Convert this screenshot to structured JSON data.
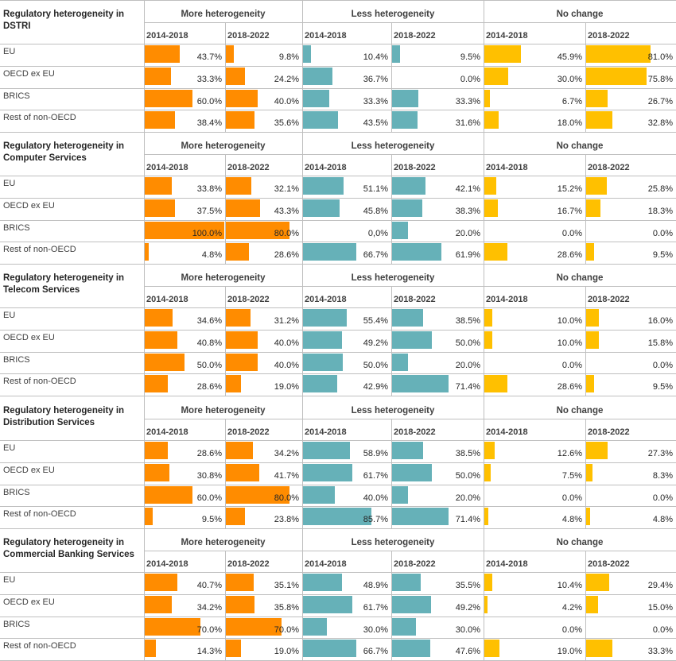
{
  "colors": {
    "more": "#ff8c00",
    "less": "#66b1b8",
    "nochange": "#ffc000"
  },
  "groups": [
    "More heterogeneity",
    "Less heterogeneity",
    "No change"
  ],
  "periods": [
    "2014-2018",
    "2018-2022"
  ],
  "regions": [
    "EU",
    "OECD ex EU",
    "BRICS",
    "Rest of non-OECD"
  ],
  "chart_data": [
    {
      "type": "table",
      "title": "Regulatory heterogeneity in DSTRI",
      "rows": [
        {
          "region": "EU",
          "labels": [
            "43.7%",
            "9.8%",
            "10.4%",
            "9.5%",
            "45.9%",
            "81.0%"
          ],
          "values": [
            43.7,
            9.8,
            10.4,
            9.5,
            45.9,
            81.0
          ]
        },
        {
          "region": "OECD ex EU",
          "labels": [
            "33.3%",
            "24.2%",
            "36.7%",
            "0.0%",
            "30.0%",
            "75.8%"
          ],
          "values": [
            33.3,
            24.2,
            36.7,
            0.0,
            30.0,
            75.8
          ]
        },
        {
          "region": "BRICS",
          "labels": [
            "60.0%",
            "40.0%",
            "33.3%",
            "33.3%",
            "6.7%",
            "26.7%"
          ],
          "values": [
            60.0,
            40.0,
            33.3,
            33.3,
            6.7,
            26.7
          ]
        },
        {
          "region": "Rest of non-OECD",
          "labels": [
            "38.4%",
            "35.6%",
            "43.5%",
            "31.6%",
            "18.0%",
            "32.8%"
          ],
          "values": [
            38.4,
            35.6,
            43.5,
            31.6,
            18.0,
            32.8
          ]
        }
      ]
    },
    {
      "type": "table",
      "title": "Regulatory heterogeneity in Computer Services",
      "rows": [
        {
          "region": "EU",
          "labels": [
            "33.8%",
            "32.1%",
            "51.1%",
            "42.1%",
            "15.2%",
            "25.8%"
          ],
          "values": [
            33.8,
            32.1,
            51.1,
            42.1,
            15.2,
            25.8
          ]
        },
        {
          "region": "OECD ex EU",
          "labels": [
            "37.5%",
            "43.3%",
            "45.8%",
            "38.3%",
            "16.7%",
            "18.3%"
          ],
          "values": [
            37.5,
            43.3,
            45.8,
            38.3,
            16.7,
            18.3
          ]
        },
        {
          "region": "BRICS",
          "labels": [
            "100.0%",
            "80.0%",
            "0,0%",
            "20.0%",
            "0.0%",
            "0.0%"
          ],
          "values": [
            100.0,
            80.0,
            0.0,
            20.0,
            0.0,
            0.0
          ]
        },
        {
          "region": "Rest of non-OECD",
          "labels": [
            "4.8%",
            "28.6%",
            "66.7%",
            "61.9%",
            "28.6%",
            "9.5%"
          ],
          "values": [
            4.8,
            28.6,
            66.7,
            61.9,
            28.6,
            9.5
          ]
        }
      ]
    },
    {
      "type": "table",
      "title": "Regulatory heterogeneity in Telecom Services",
      "rows": [
        {
          "region": "EU",
          "labels": [
            "34.6%",
            "31.2%",
            "55.4%",
            "38.5%",
            "10.0%",
            "16.0%"
          ],
          "values": [
            34.6,
            31.2,
            55.4,
            38.5,
            10.0,
            16.0
          ]
        },
        {
          "region": "OECD ex EU",
          "labels": [
            "40.8%",
            "40.0%",
            "49.2%",
            "50.0%",
            "10.0%",
            "15.8%"
          ],
          "values": [
            40.8,
            40.0,
            49.2,
            50.0,
            10.0,
            15.8
          ]
        },
        {
          "region": "BRICS",
          "labels": [
            "50.0%",
            "40.0%",
            "50.0%",
            "20.0%",
            "0.0%",
            "0.0%"
          ],
          "values": [
            50.0,
            40.0,
            50.0,
            20.0,
            0.0,
            0.0
          ]
        },
        {
          "region": "Rest of non-OECD",
          "labels": [
            "28.6%",
            "19.0%",
            "42.9%",
            "71.4%",
            "28.6%",
            "9.5%"
          ],
          "values": [
            28.6,
            19.0,
            42.9,
            71.4,
            28.6,
            9.5
          ]
        }
      ]
    },
    {
      "type": "table",
      "title": "Regulatory heterogeneity in Distribution Services",
      "rows": [
        {
          "region": "EU",
          "labels": [
            "28.6%",
            "34.2%",
            "58.9%",
            "38.5%",
            "12.6%",
            "27.3%"
          ],
          "values": [
            28.6,
            34.2,
            58.9,
            38.5,
            12.6,
            27.3
          ]
        },
        {
          "region": "OECD ex EU",
          "labels": [
            "30.8%",
            "41.7%",
            "61.7%",
            "50.0%",
            "7.5%",
            "8.3%"
          ],
          "values": [
            30.8,
            41.7,
            61.7,
            50.0,
            7.5,
            8.3
          ]
        },
        {
          "region": "BRICS",
          "labels": [
            "60.0%",
            "80.0%",
            "40.0%",
            "20.0%",
            "0.0%",
            "0.0%"
          ],
          "values": [
            60.0,
            80.0,
            40.0,
            20.0,
            0.0,
            0.0
          ]
        },
        {
          "region": "Rest of non-OECD",
          "labels": [
            "9.5%",
            "23.8%",
            "85.7%",
            "71.4%",
            "4.8%",
            "4.8%"
          ],
          "values": [
            9.5,
            23.8,
            85.7,
            71.4,
            4.8,
            4.8
          ]
        }
      ]
    },
    {
      "type": "table",
      "title": "Regulatory heterogeneity in Commercial Banking Services",
      "rows": [
        {
          "region": "EU",
          "labels": [
            "40.7%",
            "35.1%",
            "48.9%",
            "35.5%",
            "10.4%",
            "29.4%"
          ],
          "values": [
            40.7,
            35.1,
            48.9,
            35.5,
            10.4,
            29.4
          ]
        },
        {
          "region": "OECD ex EU",
          "labels": [
            "34.2%",
            "35.8%",
            "61.7%",
            "49.2%",
            "4.2%",
            "15.0%"
          ],
          "values": [
            34.2,
            35.8,
            61.7,
            49.2,
            4.2,
            15.0
          ]
        },
        {
          "region": "BRICS",
          "labels": [
            "70.0%",
            "70.0%",
            "30.0%",
            "30.0%",
            "0.0%",
            "0.0%"
          ],
          "values": [
            70.0,
            70.0,
            30.0,
            30.0,
            0.0,
            0.0
          ]
        },
        {
          "region": "Rest of non-OECD",
          "labels": [
            "14.3%",
            "19.0%",
            "66.7%",
            "47.6%",
            "19.0%",
            "33.3%"
          ],
          "values": [
            14.3,
            19.0,
            66.7,
            47.6,
            19.0,
            33.3
          ]
        }
      ]
    }
  ]
}
